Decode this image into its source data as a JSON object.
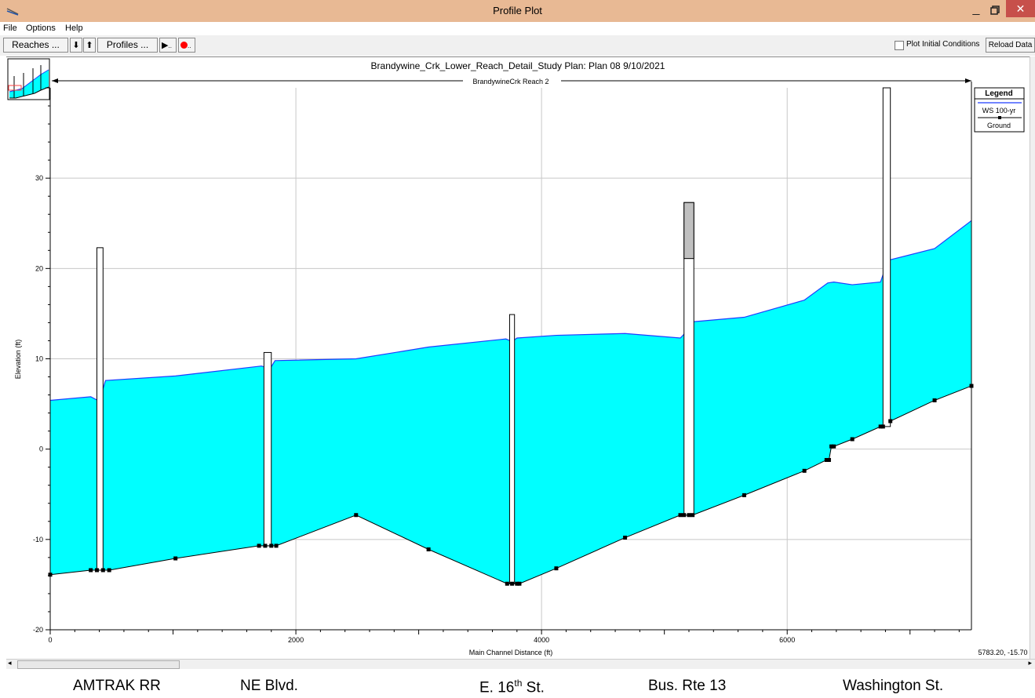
{
  "window": {
    "title": "Profile Plot",
    "min_label": "_",
    "close_label": "✕"
  },
  "menu": {
    "file": "File",
    "options": "Options",
    "help": "Help"
  },
  "toolbar": {
    "reaches_label": "Reaches ...",
    "profiles_label": "Profiles ...",
    "down_arrow": "⬇",
    "up_arrow": "⬆",
    "play_label": "▶",
    "play_dots": "..",
    "record_dots": "..",
    "plot_initial_conditions": "Plot Initial Conditions",
    "reload_data": "Reload Data"
  },
  "plot": {
    "header": "Brandywine_Crk_Lower_Reach_Detail_Study      Plan: Plan 08    9/10/2021",
    "reach_label": "BrandywineCrk Reach 2",
    "ylabel": "Elevation (ft)",
    "xlabel": "Main Channel Distance (ft)",
    "cursor_readout": "5783.20, -15.70",
    "legend": {
      "title": "Legend",
      "ws": "WS  100-yr",
      "ground": "Ground"
    },
    "colors": {
      "water": "#00ffff",
      "ws_line": "#1e3cff",
      "ground": "#000000",
      "grid": "#c8c8c8",
      "deck": "#c0c0c0"
    }
  },
  "chart_data": {
    "type": "area",
    "xlabel": "Main Channel Distance (ft)",
    "ylabel": "Elevation (ft)",
    "xlim": [
      0,
      7500
    ],
    "ylim": [
      -20,
      40
    ],
    "x_ticks": [
      0,
      2000,
      4000,
      6000
    ],
    "y_ticks": [
      -20,
      -10,
      0,
      10,
      20,
      30
    ],
    "grid": true,
    "legend_position": "top-right",
    "series": [
      {
        "name": "WS  100-yr",
        "x": [
          0,
          330,
          400,
          450,
          1020,
          1720,
          1790,
          1830,
          2490,
          3080,
          3710,
          3760,
          3800,
          4120,
          4680,
          5130,
          5180,
          5230,
          5650,
          6140,
          6330,
          6380,
          6530,
          6760,
          6820,
          7200,
          7500
        ],
        "y": [
          5.4,
          5.8,
          5.3,
          7.6,
          8.1,
          9.2,
          8.9,
          9.8,
          10.0,
          11.3,
          12.2,
          11.9,
          12.3,
          12.6,
          12.8,
          12.3,
          13.0,
          14.1,
          14.6,
          16.5,
          18.4,
          18.5,
          18.2,
          18.5,
          20.9,
          22.2,
          25.3
        ]
      },
      {
        "name": "Ground",
        "x": [
          0,
          330,
          380,
          430,
          480,
          1020,
          1700,
          1750,
          1800,
          1840,
          2490,
          3080,
          3720,
          3760,
          3800,
          3820,
          4120,
          4680,
          5130,
          5160,
          5200,
          5230,
          5650,
          6140,
          6320,
          6340,
          6360,
          6380,
          6530,
          6760,
          6780,
          6840,
          7200,
          7500
        ],
        "y": [
          -13.9,
          -13.4,
          -13.4,
          -13.4,
          -13.4,
          -12.1,
          -10.7,
          -10.7,
          -10.7,
          -10.7,
          -7.3,
          -11.1,
          -14.9,
          -14.9,
          -14.9,
          -14.9,
          -13.2,
          -9.8,
          -7.3,
          -7.3,
          -7.3,
          -7.3,
          -5.1,
          -2.4,
          -1.2,
          -1.2,
          0.3,
          0.3,
          1.1,
          2.5,
          2.5,
          3.1,
          5.4,
          7.0
        ]
      }
    ],
    "structures": [
      {
        "x1": 380,
        "x2": 430,
        "bottom": -13.4,
        "top": 22.3
      },
      {
        "x1": 1740,
        "x2": 1800,
        "bottom": -10.7,
        "top": 10.7
      },
      {
        "x1": 3740,
        "x2": 3780,
        "bottom": -14.9,
        "top": 14.9
      },
      {
        "x1": 5160,
        "x2": 5240,
        "bottom": -7.3,
        "top": 27.3,
        "deck_bottom": 21.1
      },
      {
        "x1": 6780,
        "x2": 6840,
        "bottom": 2.5,
        "top": 40
      }
    ]
  },
  "captions": {
    "amtrak": "AMTRAK  RR",
    "ne_blvd": "NE Blvd.",
    "e16_pre": "E. 16",
    "e16_sup": "th",
    "e16_post": " St.",
    "bus_rte": "Bus. Rte 13",
    "washington": "Washington St."
  }
}
